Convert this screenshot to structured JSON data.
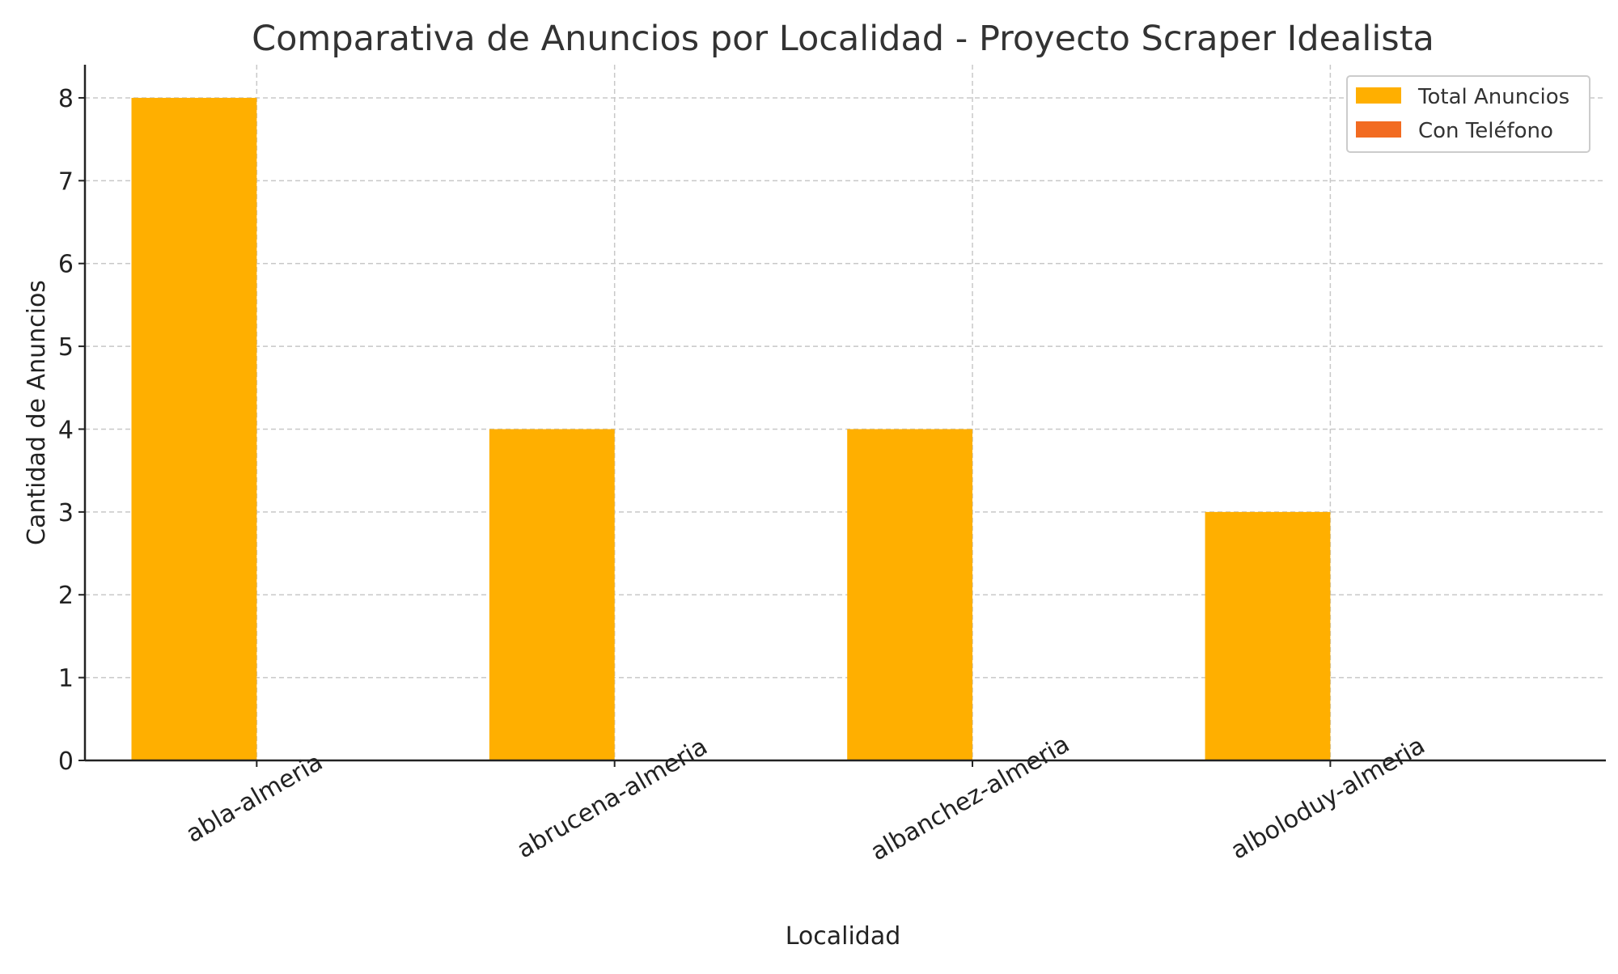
{
  "chart_data": {
    "type": "bar",
    "title": "Comparativa de Anuncios por Localidad - Proyecto Scraper Idealista",
    "xlabel": "Localidad",
    "ylabel": "Cantidad de Anuncios",
    "categories": [
      "abla-almeria",
      "abrucena-almeria",
      "albanchez-almeria",
      "alboloduy-almeria"
    ],
    "series": [
      {
        "name": "Total Anuncios",
        "values": [
          8,
          4,
          4,
          3
        ],
        "color": "#FFAF00"
      },
      {
        "name": "Con Teléfono",
        "values": [
          0,
          0,
          0,
          0
        ],
        "color": "#F26B21"
      }
    ],
    "yticks": [
      "0",
      "1",
      "2",
      "3",
      "4",
      "5",
      "6",
      "7",
      "8"
    ],
    "ylim": [
      0,
      8.4
    ],
    "grid": true,
    "legend_position": "top-right"
  }
}
